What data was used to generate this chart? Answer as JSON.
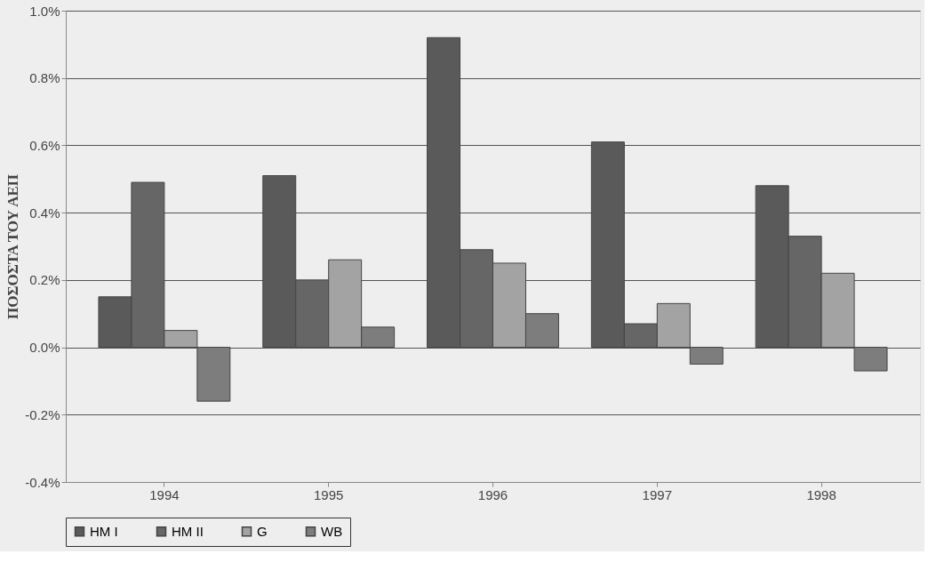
{
  "chart_data": {
    "type": "bar",
    "ylabel": "ΠΟΣΟΣΤΑ ΤΟΥ ΑΕΠ",
    "categories": [
      "1994",
      "1995",
      "1996",
      "1997",
      "1998"
    ],
    "series": [
      {
        "name": "HM I",
        "color": "#5a5a5a",
        "values": [
          0.15,
          0.51,
          0.92,
          0.61,
          0.48
        ]
      },
      {
        "name": "HM II",
        "color": "#666666",
        "values": [
          0.49,
          0.2,
          0.29,
          0.07,
          0.33
        ]
      },
      {
        "name": "G",
        "color": "#a3a3a3",
        "values": [
          0.05,
          0.26,
          0.25,
          0.13,
          0.22
        ]
      },
      {
        "name": "WB",
        "color": "#7d7d7d",
        "values": [
          -0.16,
          0.06,
          0.1,
          -0.05,
          -0.07
        ]
      }
    ],
    "ylim": [
      -0.4,
      1.0
    ],
    "yticks": [
      {
        "value": -0.4,
        "label": "-0.4%"
      },
      {
        "value": -0.2,
        "label": "-0.2%"
      },
      {
        "value": 0.0,
        "label": "0.0%"
      },
      {
        "value": 0.2,
        "label": "0.2%"
      },
      {
        "value": 0.4,
        "label": "0.4%"
      },
      {
        "value": 0.6,
        "label": "0.6%"
      },
      {
        "value": 0.8,
        "label": "0.8%"
      },
      {
        "value": 1.0,
        "label": "1.0%"
      }
    ],
    "grid": "y",
    "legend": "bottom"
  }
}
